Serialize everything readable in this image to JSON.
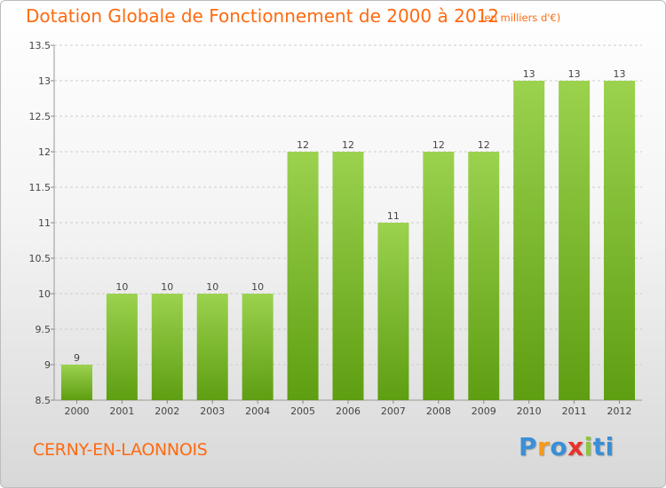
{
  "header": {
    "title": "Dotation Globale de Fonctionnement de 2000 à 2012",
    "unit": "(en milliers d'€)"
  },
  "footer": {
    "place": "CERNY-EN-LAONNOIS",
    "logo": [
      "P",
      "r",
      "o",
      "x",
      "i",
      "ti"
    ]
  },
  "colors": {
    "title": "#ff6a10",
    "bar_light": "#9bd24e",
    "bar_dark": "#5e9e12",
    "grid": "#cccccc"
  },
  "chart_data": {
    "type": "bar",
    "title": "Dotation Globale de Fonctionnement de 2000 à 2012",
    "xlabel": "",
    "ylabel": "",
    "categories": [
      "2000",
      "2001",
      "2002",
      "2003",
      "2004",
      "2005",
      "2006",
      "2007",
      "2008",
      "2009",
      "2010",
      "2011",
      "2012"
    ],
    "values": [
      9,
      10,
      10,
      10,
      10,
      12,
      12,
      11,
      12,
      12,
      13,
      13,
      13
    ],
    "ylim": [
      8.5,
      13.5
    ],
    "yticks": [
      8.5,
      9,
      9.5,
      10,
      10.5,
      11,
      11.5,
      12,
      12.5,
      13,
      13.5
    ],
    "ytick_labels": [
      "8.5",
      "9",
      "9.5",
      "10",
      "10.5",
      "11",
      "11.5",
      "12",
      "12.5",
      "13",
      "13.5"
    ],
    "grid": "horizontal dashed",
    "legend": "none"
  }
}
